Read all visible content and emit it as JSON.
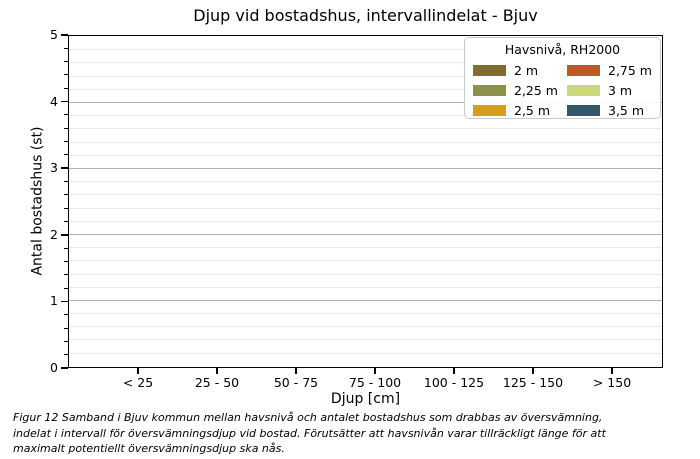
{
  "chart_data": {
    "type": "bar",
    "title": "Djup vid bostadshus, intervallindelat - Bjuv",
    "xlabel": "Djup [cm]",
    "ylabel": "Antal bostadshus (st)",
    "categories": [
      "< 25",
      "25 - 50",
      "50 - 75",
      "75 - 100",
      "100 - 125",
      "125 - 150",
      "> 150"
    ],
    "ylim": [
      0,
      5
    ],
    "ytick_step": 1,
    "yminor_step": 0.2,
    "grid": "horizontal major and minor gridlines, plot box on all four sides",
    "legend": {
      "title": "Havsnivå, RH2000",
      "position": "upper right",
      "columns": 2
    },
    "series": [
      {
        "name": "2 m",
        "color": "#7d6e2d",
        "values": [
          0,
          0,
          0,
          0,
          0,
          0,
          0
        ]
      },
      {
        "name": "2,25 m",
        "color": "#8c914b",
        "values": [
          0,
          0,
          0,
          0,
          0,
          0,
          0
        ]
      },
      {
        "name": "2,5 m",
        "color": "#d59e21",
        "values": [
          0,
          0,
          0,
          0,
          0,
          0,
          0
        ]
      },
      {
        "name": "2,75 m",
        "color": "#bd5a2a",
        "values": [
          0,
          0,
          0,
          0,
          0,
          0,
          0
        ]
      },
      {
        "name": "3 m",
        "color": "#ccd87a",
        "values": [
          0,
          0,
          0,
          0,
          0,
          0,
          0
        ]
      },
      {
        "name": "3,5 m",
        "color": "#33586e",
        "values": [
          0,
          0,
          0,
          0,
          0,
          0,
          0
        ]
      }
    ]
  },
  "caption": {
    "lines": [
      "Figur 12 Samband i Bjuv kommun mellan havsnivå och antalet bostadshus som drabbas av översvämning,",
      "indelat i intervall för översvämningsdjup vid bostad. Förutsätter att havsnivån varar tillräckligt länge för att",
      "maximalt potentiellt översvämningsdjup ska nås."
    ]
  },
  "colors": {
    "spine": "#000000",
    "major_grid": "#b2b2b2",
    "minor_grid": "#e7e7e7",
    "text": "#000000",
    "legend_border": "#c9c9c9",
    "background": "#ffffff"
  }
}
